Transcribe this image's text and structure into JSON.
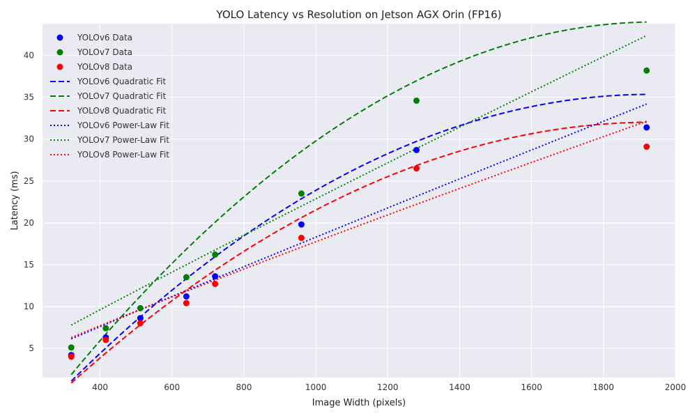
{
  "chart_data": {
    "type": "scatter",
    "title": "YOLO Latency vs Resolution on Jetson AGX Orin (FP16)",
    "xlabel": "Image Width (pixels)",
    "ylabel": "Latency (ms)",
    "xlim": [
      240,
      2000
    ],
    "ylim": [
      1.5,
      43.8
    ],
    "x_ticks": [
      400,
      600,
      800,
      1000,
      1200,
      1400,
      1600,
      1800,
      2000
    ],
    "y_ticks": [
      5,
      10,
      15,
      20,
      25,
      30,
      35,
      40
    ],
    "grid": true,
    "legend_position": "top-left",
    "style": {
      "plot_background": "#eaeaf2",
      "grid_color": "#ffffff"
    },
    "x": [
      320,
      416,
      512,
      640,
      720,
      960,
      1280,
      1920
    ],
    "series": [
      {
        "name": "YOLOv6 Data",
        "kind": "points",
        "color": "#0000ff",
        "values": [
          4.2,
          6.3,
          8.6,
          11.2,
          13.6,
          19.8,
          28.7,
          31.4
        ]
      },
      {
        "name": "YOLOv7 Data",
        "kind": "points",
        "color": "#008000",
        "values": [
          5.1,
          7.4,
          9.8,
          13.5,
          16.2,
          23.5,
          34.6,
          38.2
        ]
      },
      {
        "name": "YOLOv8 Data",
        "kind": "points",
        "color": "#ff0000",
        "values": [
          4.0,
          6.0,
          8.0,
          10.4,
          12.7,
          18.2,
          26.5,
          29.1
        ]
      },
      {
        "name": "YOLOv6 Quadratic Fit",
        "kind": "quadratic",
        "color": "#0000ff",
        "coefficients": [
          -13.86,
          0.0509,
          -1.316e-05
        ],
        "x_range": [
          320,
          1920
        ]
      },
      {
        "name": "YOLOv7 Quadratic Fit",
        "kind": "quadratic",
        "color": "#008000",
        "coefficients": [
          -16.41,
          0.0622,
          -1.601e-05
        ],
        "x_range": [
          320,
          1920
        ]
      },
      {
        "name": "YOLOv8 Quadratic Fit",
        "kind": "quadratic",
        "color": "#ff0000",
        "coefficients": [
          -12.69,
          0.0461,
          -1.188e-05
        ],
        "x_range": [
          320,
          1920
        ]
      },
      {
        "name": "YOLOv6 Power-Law Fit",
        "kind": "power",
        "color": "#0000ff",
        "a": 0.0241,
        "b": 0.96,
        "x_range": [
          320,
          1920
        ]
      },
      {
        "name": "YOLOv7 Power-Law Fit",
        "kind": "power",
        "color": "#008000",
        "a": 0.0332,
        "b": 0.946,
        "x_range": [
          320,
          1920
        ]
      },
      {
        "name": "YOLOv8 Power-Law Fit",
        "kind": "power",
        "color": "#ff0000",
        "a": 0.0328,
        "b": 0.911,
        "x_range": [
          320,
          1920
        ]
      }
    ]
  }
}
